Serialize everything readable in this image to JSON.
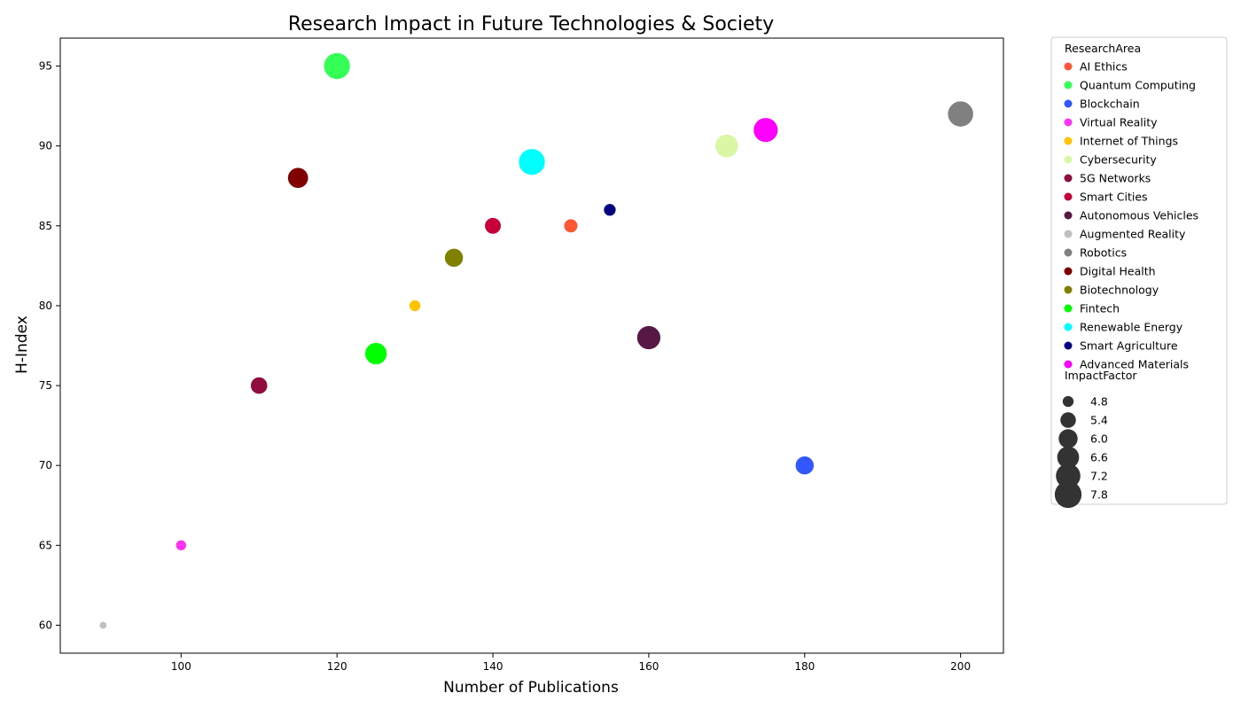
{
  "chart_data": {
    "type": "scatter",
    "title": "Research Impact in Future Technologies & Society",
    "xlabel": "Number of Publications",
    "ylabel": "H-Index",
    "xlim": [
      84.5,
      205.5
    ],
    "ylim": [
      58.25,
      96.75
    ],
    "xticks": [
      100,
      120,
      140,
      160,
      180,
      200
    ],
    "yticks": [
      60,
      65,
      70,
      75,
      80,
      85,
      90,
      95
    ],
    "grid": false,
    "legend_position": "outside-right",
    "hue_title": "ResearchArea",
    "size_title": "ImpactFactor",
    "size_legend": [
      4.8,
      5.4,
      6.0,
      6.6,
      7.2,
      7.8
    ],
    "size_range": [
      4.5,
      8.0
    ],
    "points": [
      {
        "area": "AI Ethics",
        "x": 150,
        "y": 85,
        "impact": 5.2,
        "color": "#ff5733"
      },
      {
        "area": "Quantum Computing",
        "x": 120,
        "y": 95,
        "impact": 7.8,
        "color": "#33ff57"
      },
      {
        "area": "Blockchain",
        "x": 180,
        "y": 70,
        "impact": 6.0,
        "color": "#3357ff"
      },
      {
        "area": "Virtual Reality",
        "x": 100,
        "y": 65,
        "impact": 4.8,
        "color": "#ff33f3"
      },
      {
        "area": "Internet of Things",
        "x": 130,
        "y": 80,
        "impact": 4.9,
        "color": "#ffc300"
      },
      {
        "area": "Cybersecurity",
        "x": 170,
        "y": 90,
        "impact": 7.0,
        "color": "#daf7a6"
      },
      {
        "area": "5G Networks",
        "x": 110,
        "y": 75,
        "impact": 5.7,
        "color": "#900c3f"
      },
      {
        "area": "Smart Cities",
        "x": 140,
        "y": 85,
        "impact": 5.6,
        "color": "#c70039"
      },
      {
        "area": "Autonomous Vehicles",
        "x": 160,
        "y": 78,
        "impact": 7.1,
        "color": "#581845"
      },
      {
        "area": "Augmented Reality",
        "x": 90,
        "y": 60,
        "impact": 4.5,
        "color": "#c0c0c0"
      },
      {
        "area": "Robotics",
        "x": 200,
        "y": 92,
        "impact": 7.6,
        "color": "#808080"
      },
      {
        "area": "Digital Health",
        "x": 115,
        "y": 88,
        "impact": 6.4,
        "color": "#800000"
      },
      {
        "area": "Biotechnology",
        "x": 135,
        "y": 83,
        "impact": 6.0,
        "color": "#808000"
      },
      {
        "area": "Fintech",
        "x": 125,
        "y": 77,
        "impact": 6.7,
        "color": "#00ff00"
      },
      {
        "area": "Renewable Energy",
        "x": 145,
        "y": 89,
        "impact": 7.8,
        "color": "#00ffff"
      },
      {
        "area": "Smart Agriculture",
        "x": 155,
        "y": 86,
        "impact": 5.0,
        "color": "#000080"
      },
      {
        "area": "Advanced Materials",
        "x": 175,
        "y": 91,
        "impact": 7.3,
        "color": "#ff00ff"
      }
    ]
  }
}
